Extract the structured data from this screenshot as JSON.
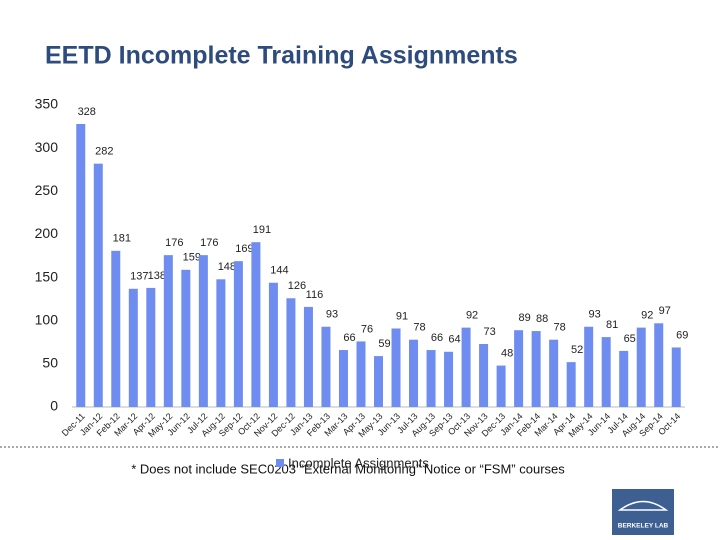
{
  "chart_data": {
    "type": "bar",
    "title": "EETD Incomplete Training Assignments",
    "categories": [
      "Dec-11",
      "Jan-12",
      "Feb-12",
      "Mar-12",
      "Apr-12",
      "May-12",
      "Jun-12",
      "Jul-12",
      "Aug-12",
      "Sep-12",
      "Oct-12",
      "Nov-12",
      "Dec-12",
      "Jan-13",
      "Feb-13",
      "Mar-13",
      "Apr-13",
      "May-13",
      "Jun-13",
      "Jul-13",
      "Aug-13",
      "Sep-13",
      "Oct-13",
      "Nov-13",
      "Dec-13",
      "Jan-14",
      "Feb-14",
      "Mar-14",
      "Apr-14",
      "May-14",
      "Jun-14",
      "Jul-14",
      "Aug-14",
      "Sep-14",
      "Oct-14"
    ],
    "series": [
      {
        "name": "Incomplete Assignments",
        "color": "#6f8cf0",
        "values": [
          328,
          282,
          181,
          137,
          138,
          176,
          159,
          176,
          148,
          169,
          191,
          144,
          126,
          116,
          93,
          66,
          76,
          59,
          91,
          78,
          66,
          64,
          92,
          73,
          48,
          89,
          88,
          78,
          52,
          93,
          81,
          65,
          92,
          97,
          69
        ]
      }
    ],
    "ylim": [
      0,
      350
    ],
    "yticks": [
      0,
      50,
      100,
      150,
      200,
      250,
      300,
      350
    ],
    "grid": false,
    "legend": "bottom"
  },
  "footnote": "* Does not include SEC0203 “External Monitoring” Notice or “FSM” courses",
  "logo": "BERKELEY LAB"
}
